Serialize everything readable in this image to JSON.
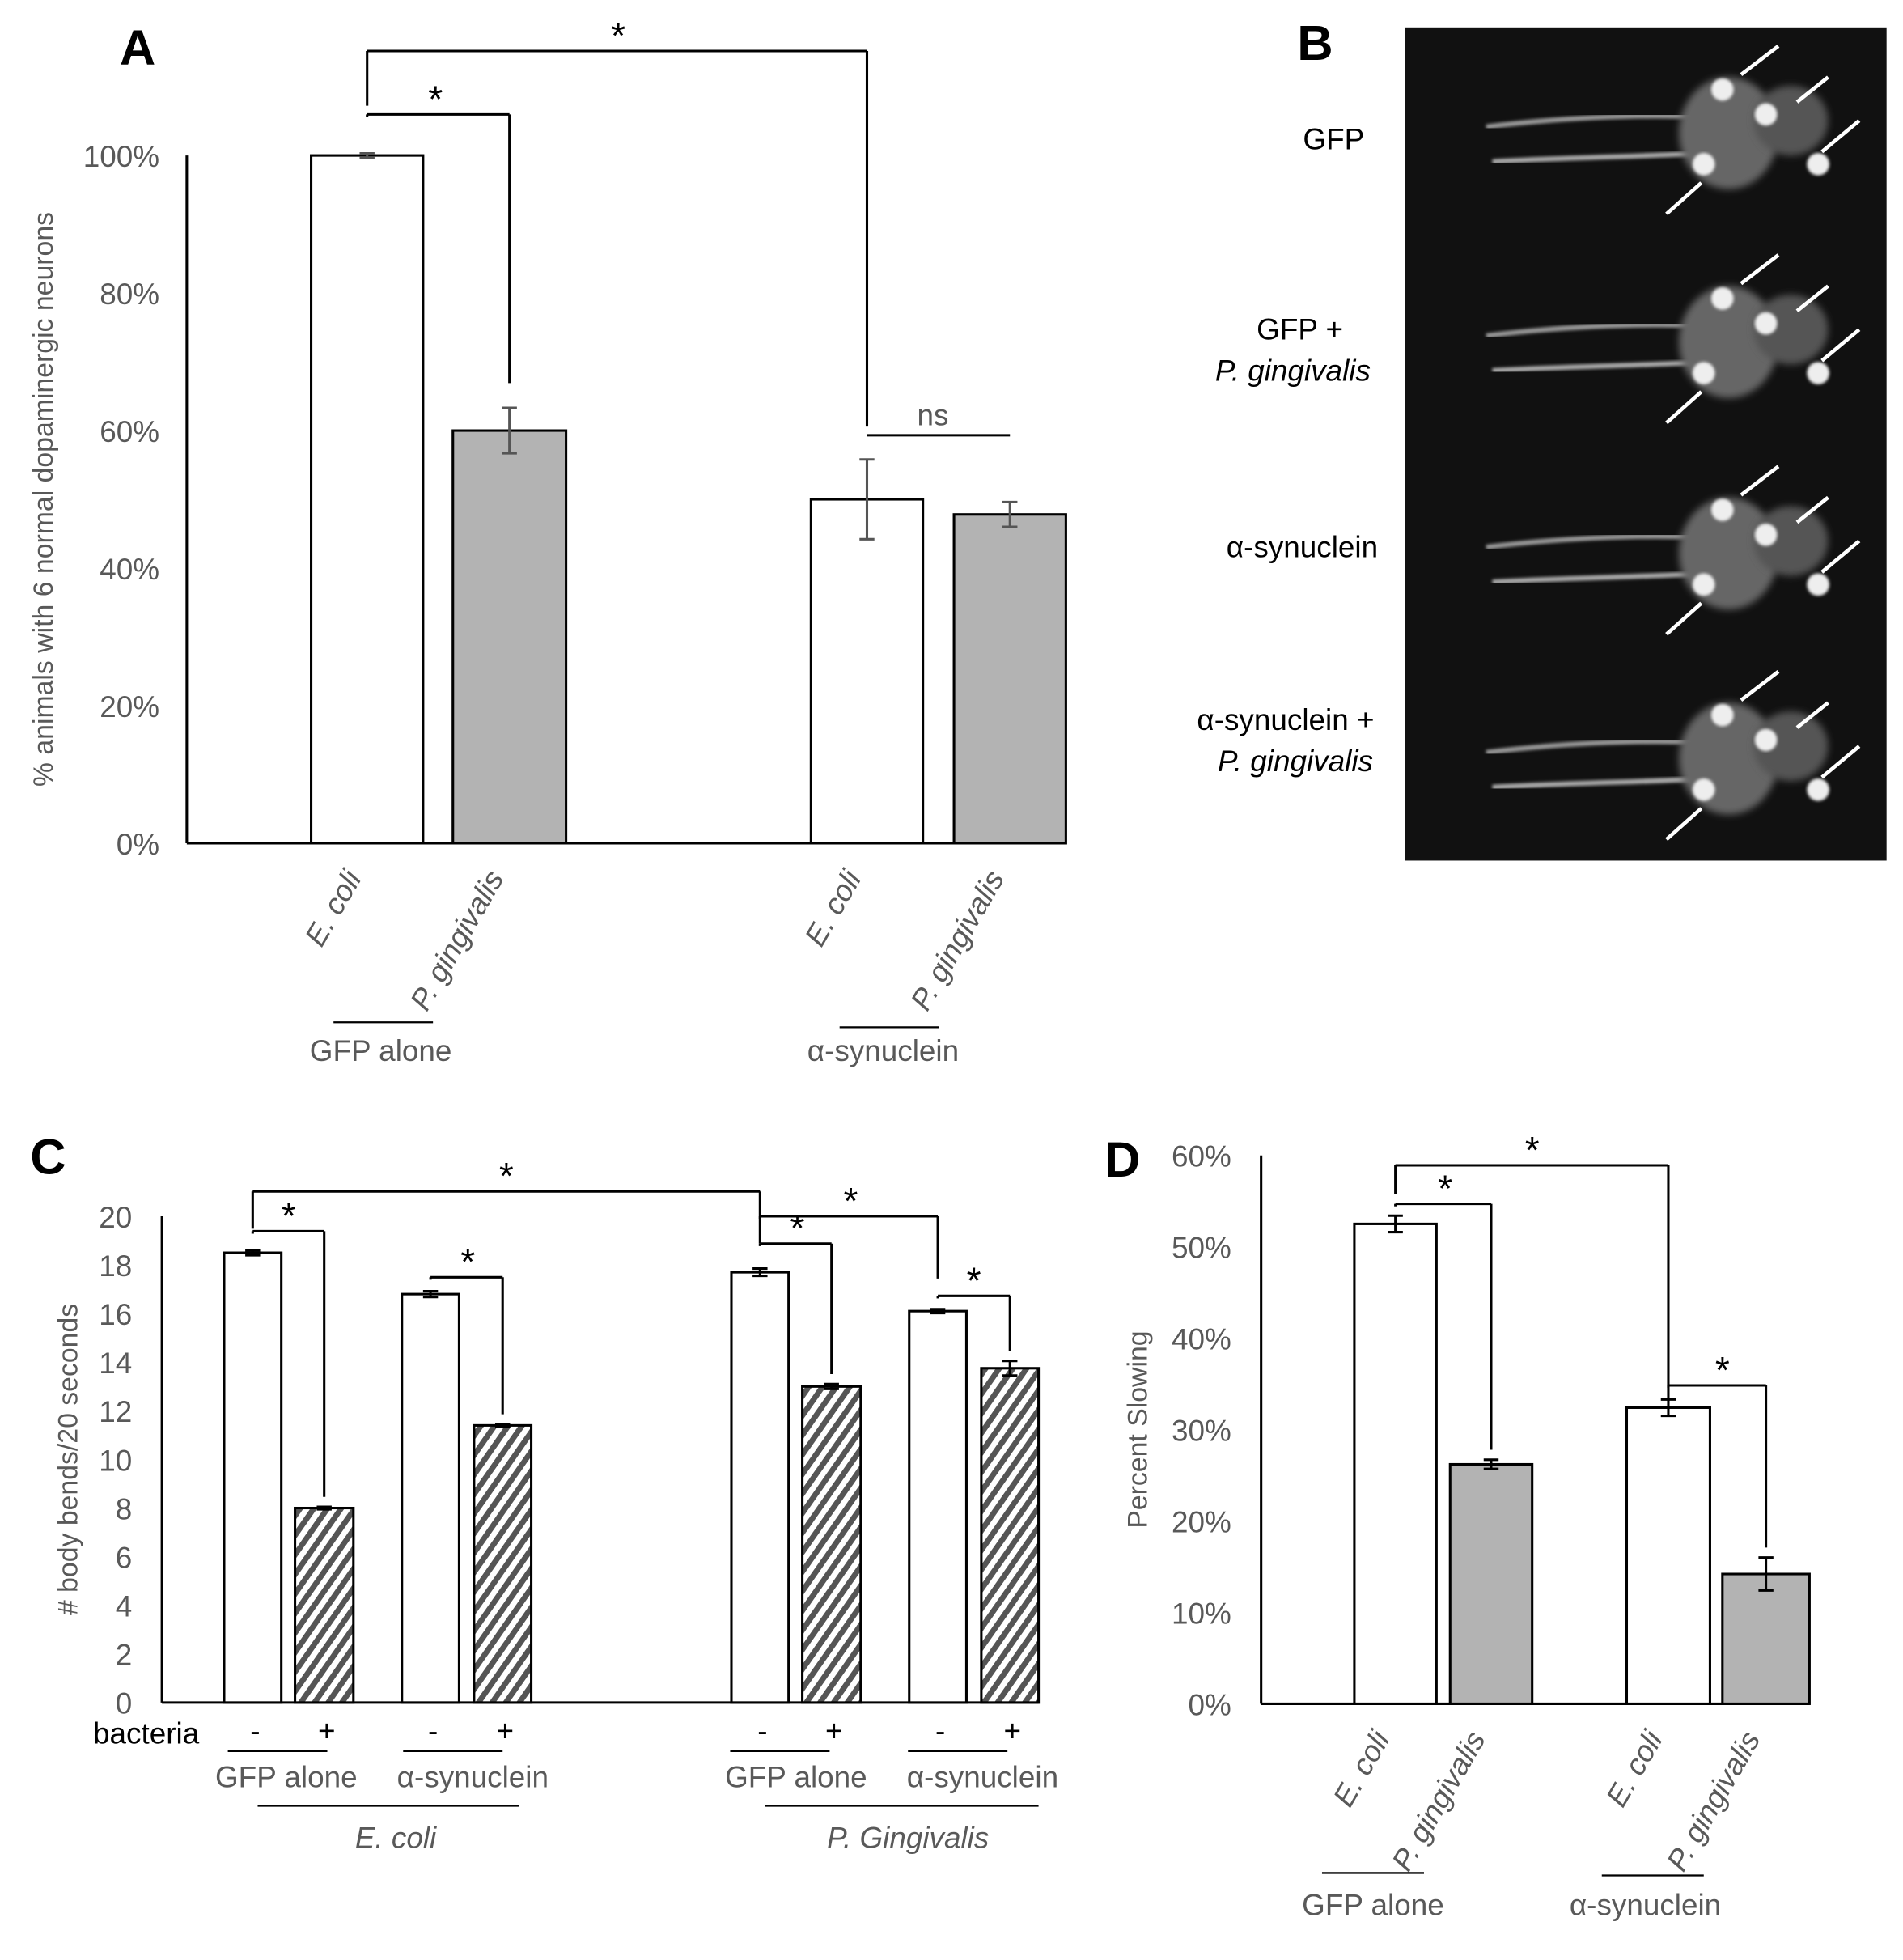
{
  "panels": {
    "a": "A",
    "b": "B",
    "c": "C",
    "d": "D"
  },
  "panel_b": {
    "labels": [
      {
        "text": "GFP",
        "italic": false
      },
      {
        "text": "GFP +",
        "italic": false
      },
      {
        "text": "P. gingivalis",
        "italic": true
      },
      {
        "text": "α-synuclein",
        "italic": false
      },
      {
        "text": "α-synuclein +",
        "italic": false
      },
      {
        "text": "P. gingivalis",
        "italic": true
      }
    ]
  },
  "chart_data": [
    {
      "id": "A",
      "type": "bar",
      "ylabel": "% animals with 6 normal dopaminergic neurons",
      "ylim": [
        0,
        100
      ],
      "yticks": [
        "0%",
        "20%",
        "40%",
        "60%",
        "80%",
        "100%"
      ],
      "categories": [
        "E. coli",
        "P. gingivalis",
        "E. coli",
        "P. gingivalis"
      ],
      "groups": [
        "GFP alone",
        "α-synuclein"
      ],
      "values": [
        100,
        60,
        50,
        47.8
      ],
      "errors": [
        0.3,
        3.3,
        5.8,
        1.8
      ],
      "fills": [
        "white",
        "gray",
        "white",
        "gray"
      ],
      "annotations": [
        {
          "from": 0,
          "to": 2,
          "label": "*"
        },
        {
          "from": 0,
          "to": 1,
          "label": "*"
        },
        {
          "from": 2,
          "to": 3,
          "label": "ns"
        }
      ]
    },
    {
      "id": "C",
      "type": "bar",
      "ylabel": "# body bends/20 seconds",
      "ylim": [
        0,
        20
      ],
      "yticks": [
        "0",
        "2",
        "4",
        "6",
        "8",
        "10",
        "12",
        "14",
        "16",
        "18",
        "20"
      ],
      "row_label": "bacteria",
      "categories": [
        "-",
        "+",
        "-",
        "+",
        "-",
        "+",
        "-",
        "+"
      ],
      "subgroups": [
        "GFP alone",
        "α-synuclein",
        "GFP alone",
        "α-synuclein"
      ],
      "groups": [
        "E. coli",
        "P. Gingivalis"
      ],
      "values": [
        18.5,
        8.0,
        16.8,
        11.4,
        17.7,
        13.0,
        16.1,
        13.75
      ],
      "errors": [
        0.1,
        0.05,
        0.12,
        0.05,
        0.15,
        0.1,
        0.08,
        0.3
      ],
      "fills": [
        "white",
        "hatch",
        "white",
        "hatch",
        "white",
        "hatch",
        "white",
        "hatch"
      ],
      "annotations": [
        {
          "from": 0,
          "to": 4,
          "label": "*"
        },
        {
          "from": 0,
          "to": 1,
          "label": "*"
        },
        {
          "from": 2,
          "to": 3,
          "label": "*"
        },
        {
          "from": 4,
          "to": 5,
          "label": "*"
        },
        {
          "from": 4,
          "to": 6,
          "label": "*"
        },
        {
          "from": 6,
          "to": 7,
          "label": "*"
        }
      ]
    },
    {
      "id": "D",
      "type": "bar",
      "ylabel": "Percent Slowing",
      "ylim": [
        0,
        60
      ],
      "yticks": [
        "0%",
        "10%",
        "20%",
        "30%",
        "40%",
        "50%",
        "60%"
      ],
      "categories": [
        "E. coli",
        "P. gingivalis",
        "E. coli",
        "P. gingivalis"
      ],
      "groups": [
        "GFP alone",
        "α-synuclein"
      ],
      "values": [
        52.5,
        26.2,
        32.4,
        14.2
      ],
      "errors": [
        0.9,
        0.5,
        0.9,
        1.8
      ],
      "fills": [
        "white",
        "gray",
        "white",
        "gray"
      ],
      "annotations": [
        {
          "from": 0,
          "to": 2,
          "label": "*"
        },
        {
          "from": 0,
          "to": 1,
          "label": "*"
        },
        {
          "from": 2,
          "to": 3,
          "label": "*"
        }
      ]
    }
  ]
}
